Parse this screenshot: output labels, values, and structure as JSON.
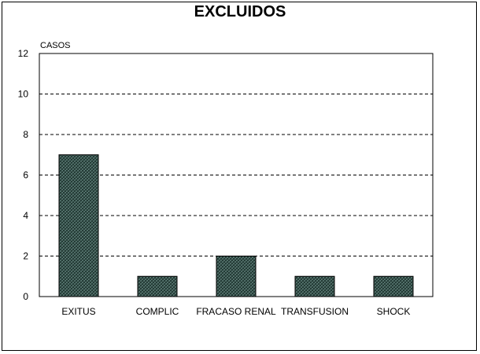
{
  "chart_data": {
    "type": "bar",
    "title": "EXCLUIDOS",
    "ylabel": "CASOS",
    "xlabel": "",
    "categories": [
      "EXITUS",
      "COMPLIC",
      "FRACASO RENAL",
      "TRANSFUSION",
      "SHOCK"
    ],
    "values": [
      7,
      1,
      2,
      1,
      1
    ],
    "ylim": [
      0,
      12
    ],
    "yticks": [
      "0",
      "2",
      "4",
      "6",
      "8",
      "10",
      "12"
    ],
    "grid": "horizontal dashed",
    "legend": "none",
    "bar_color": "#2e4a44"
  }
}
